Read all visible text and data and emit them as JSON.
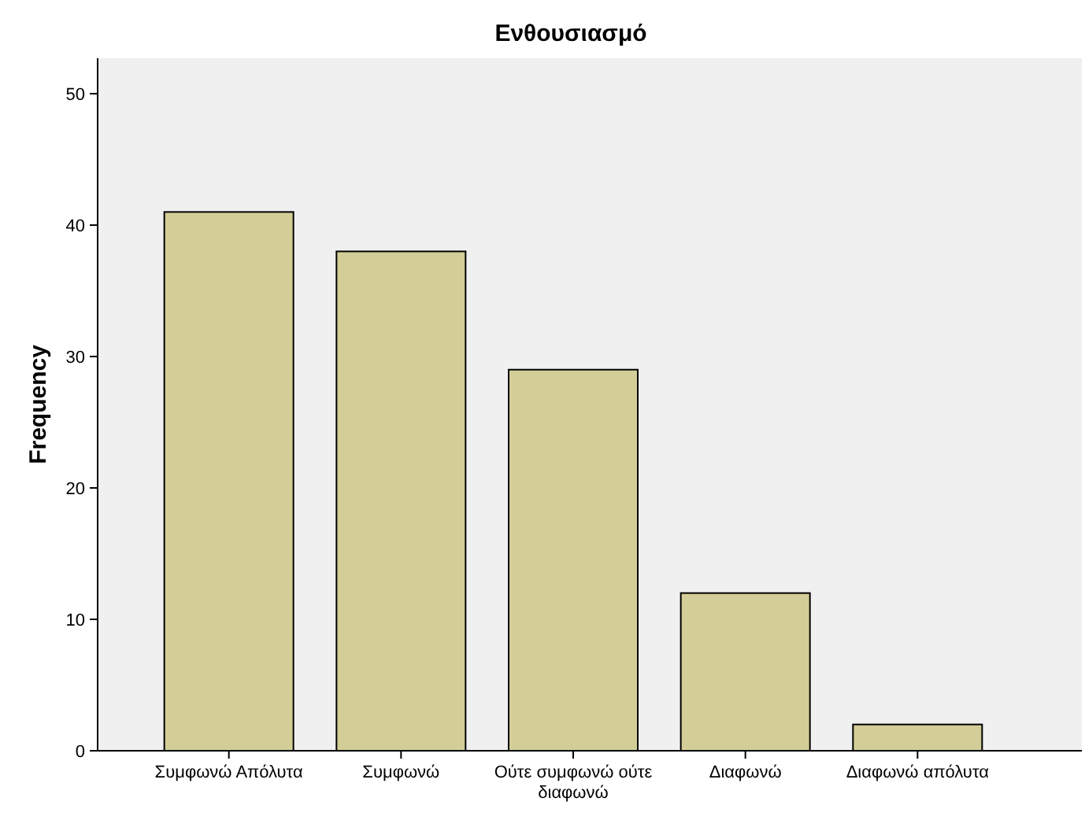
{
  "chart_data": {
    "type": "bar",
    "title": "Ενθουσιασμό",
    "ylabel": "Frequency",
    "categories": [
      "Συμφωνώ Απόλυτα",
      "Συμφωνώ",
      "Ούτε συμφωνώ ούτε διαφωνώ",
      "Διαφωνώ",
      "Διαφωνώ απόλυτα"
    ],
    "values": [
      41,
      38,
      29,
      12,
      2
    ],
    "color": "#d3ce97",
    "ylim": [
      0,
      52.7
    ],
    "yticks": [
      0,
      10,
      20,
      30,
      40,
      50
    ],
    "grid": false
  }
}
